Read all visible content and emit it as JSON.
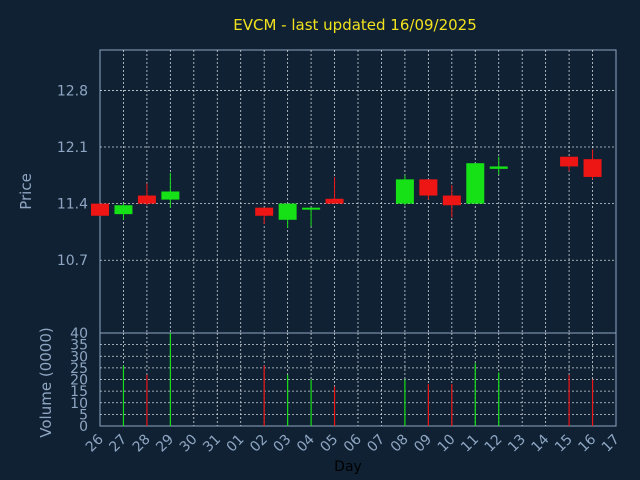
{
  "chart_data": [
    {
      "type": "candlestick",
      "title": "EVCM - last updated 16/09/2025",
      "ylabel": "Price",
      "xlabel": "",
      "yticks": [
        12.8,
        12.1,
        11.4,
        10.7
      ],
      "ylim": [
        9.8,
        13.3
      ],
      "categories": [
        "26",
        "27",
        "28",
        "29",
        "30",
        "31",
        "01",
        "02",
        "03",
        "04",
        "05",
        "06",
        "07",
        "08",
        "09",
        "10",
        "11",
        "12",
        "13",
        "14",
        "15",
        "16",
        "17"
      ],
      "grid": true,
      "candles": [
        {
          "day": "26",
          "open": 11.4,
          "close": 11.25,
          "high": 11.4,
          "low": 11.25
        },
        {
          "day": "27",
          "open": 11.27,
          "close": 11.38,
          "high": 11.4,
          "low": 11.2
        },
        {
          "day": "28",
          "open": 11.5,
          "close": 11.4,
          "high": 11.65,
          "low": 11.38
        },
        {
          "day": "29",
          "open": 11.45,
          "close": 11.55,
          "high": 11.78,
          "low": 11.35
        },
        {
          "day": "02",
          "open": 11.35,
          "close": 11.25,
          "high": 11.35,
          "low": 11.15
        },
        {
          "day": "03",
          "open": 11.2,
          "close": 11.4,
          "high": 11.4,
          "low": 11.1
        },
        {
          "day": "04",
          "open": 11.33,
          "close": 11.35,
          "high": 11.35,
          "low": 11.12
        },
        {
          "day": "05",
          "open": 11.46,
          "close": 11.4,
          "high": 11.73,
          "low": 11.4
        },
        {
          "day": "08",
          "open": 11.4,
          "close": 11.7,
          "high": 11.75,
          "low": 11.38
        },
        {
          "day": "09",
          "open": 11.7,
          "close": 11.5,
          "high": 11.7,
          "low": 11.45
        },
        {
          "day": "10",
          "open": 11.5,
          "close": 11.38,
          "high": 11.63,
          "low": 11.23
        },
        {
          "day": "11",
          "open": 11.4,
          "close": 11.9,
          "high": 11.9,
          "low": 11.4
        },
        {
          "day": "12",
          "open": 11.83,
          "close": 11.86,
          "high": 11.98,
          "low": 11.76
        },
        {
          "day": "15",
          "open": 11.98,
          "close": 11.86,
          "high": 11.98,
          "low": 11.8
        },
        {
          "day": "16",
          "open": 11.95,
          "close": 11.73,
          "high": 12.07,
          "low": 11.7
        }
      ],
      "colors": {
        "up": "#16e016",
        "down": "#ee1515",
        "background": "#0f2133",
        "grid": "#cfd6dc",
        "axis_text": "#8fa6c2",
        "title": "#f2e21e"
      }
    },
    {
      "type": "bar",
      "title": "",
      "ylabel": "Volume (0000)",
      "xlabel": "Day",
      "yticks": [
        0,
        5,
        10,
        15,
        20,
        25,
        30,
        35,
        40
      ],
      "ylim": [
        0,
        40
      ],
      "categories": [
        "26",
        "27",
        "28",
        "29",
        "30",
        "31",
        "01",
        "02",
        "03",
        "04",
        "05",
        "06",
        "07",
        "08",
        "09",
        "10",
        "11",
        "12",
        "13",
        "14",
        "15",
        "16",
        "17"
      ],
      "grid": true,
      "bars": [
        {
          "day": "27",
          "value": 26,
          "dir": "up"
        },
        {
          "day": "28",
          "value": 22,
          "dir": "down"
        },
        {
          "day": "29",
          "value": 40,
          "dir": "up"
        },
        {
          "day": "02",
          "value": 26,
          "dir": "down"
        },
        {
          "day": "03",
          "value": 22,
          "dir": "up"
        },
        {
          "day": "04",
          "value": 20,
          "dir": "up"
        },
        {
          "day": "05",
          "value": 17,
          "dir": "down"
        },
        {
          "day": "08",
          "value": 20,
          "dir": "up"
        },
        {
          "day": "09",
          "value": 18,
          "dir": "down"
        },
        {
          "day": "10",
          "value": 18,
          "dir": "down"
        },
        {
          "day": "11",
          "value": 27,
          "dir": "up"
        },
        {
          "day": "12",
          "value": 23,
          "dir": "up"
        },
        {
          "day": "15",
          "value": 22,
          "dir": "down"
        },
        {
          "day": "16",
          "value": 20,
          "dir": "down"
        }
      ]
    }
  ]
}
